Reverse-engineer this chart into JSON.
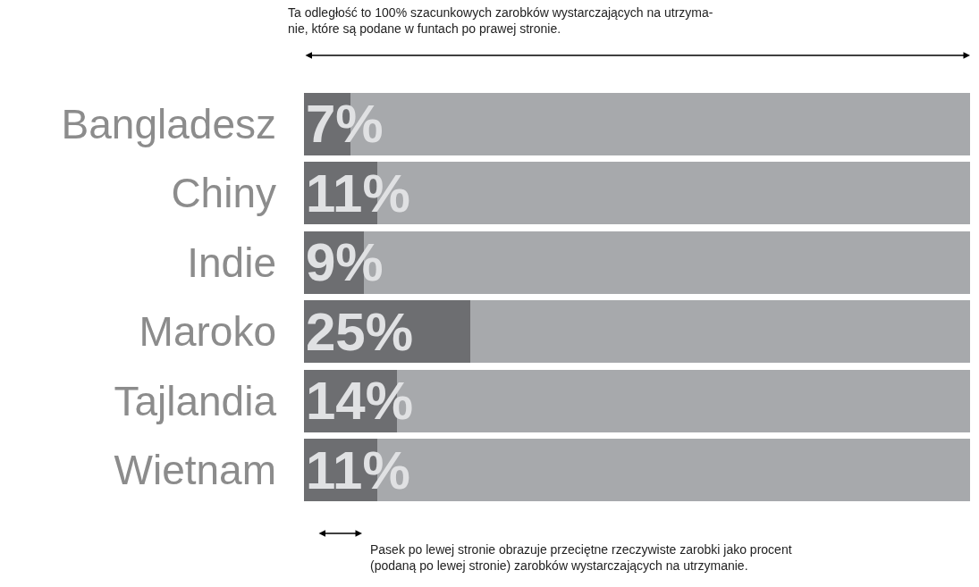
{
  "chart_data": {
    "type": "bar",
    "orientation": "horizontal",
    "stacked": true,
    "categories": [
      "Bangladesz",
      "Chiny",
      "Indie",
      "Maroko",
      "Tajlandia",
      "Wietnam"
    ],
    "xlim": [
      0,
      100
    ],
    "series": [
      {
        "color": "#6d6e71",
        "values": [
          7,
          11,
          9,
          25,
          14,
          11
        ],
        "value_labels": [
          "7%",
          "11%",
          "9%",
          "25%",
          "14%",
          "11%"
        ]
      },
      {
        "color": "#a7a9ac",
        "values": [
          93,
          89,
          91,
          75,
          86,
          89
        ]
      }
    ],
    "annotations": [
      "Ta odległość to 100% szacunkowych zarobków wystarczających na utrzyma-\nnie, które są podane w funtach po prawej stronie.",
      "Pasek po lewej stronie obrazuje przeciętne rzeczywiste zarobki jako procent\n(podaną po lewej stronie) zarobków wystarczających na utrzymanie."
    ]
  }
}
